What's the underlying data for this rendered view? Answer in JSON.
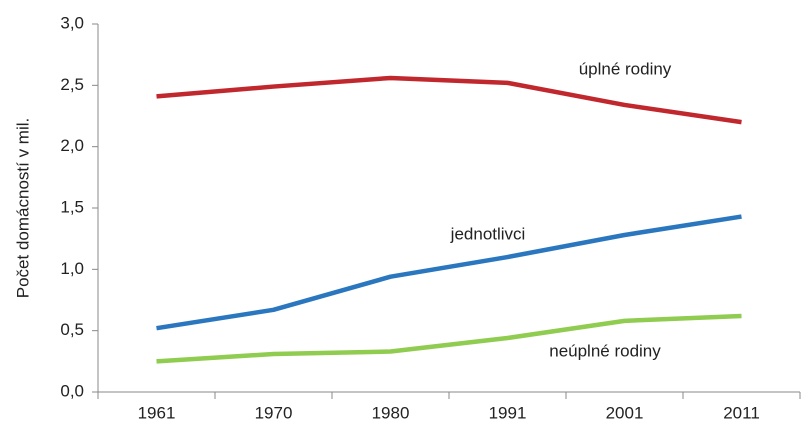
{
  "chart_data": {
    "type": "line",
    "y_axis_label": "Počet domácností v mil.",
    "categories": [
      "1961",
      "1970",
      "1980",
      "1991",
      "2001",
      "2011"
    ],
    "series": [
      {
        "name": "úplné rodiny",
        "color": "#c0282d",
        "values": [
          2.41,
          2.49,
          2.56,
          2.52,
          2.34,
          2.2
        ]
      },
      {
        "name": "jednotlivci",
        "color": "#2a77c0",
        "values": [
          0.52,
          0.67,
          0.94,
          1.1,
          1.28,
          1.43
        ]
      },
      {
        "name": "neúplné rodiny",
        "color": "#8fcc50",
        "values": [
          0.25,
          0.31,
          0.33,
          0.44,
          0.58,
          0.62
        ]
      }
    ],
    "ylim": [
      0,
      3
    ],
    "yticks": [
      {
        "value": 0,
        "label": "0,0"
      },
      {
        "value": 0.5,
        "label": "0,5"
      },
      {
        "value": 1,
        "label": "1,0"
      },
      {
        "value": 1.5,
        "label": "1,5"
      },
      {
        "value": 2,
        "label": "2,0"
      },
      {
        "value": 2.5,
        "label": "2,5"
      },
      {
        "value": 3,
        "label": "3,0"
      }
    ],
    "grid": false
  }
}
